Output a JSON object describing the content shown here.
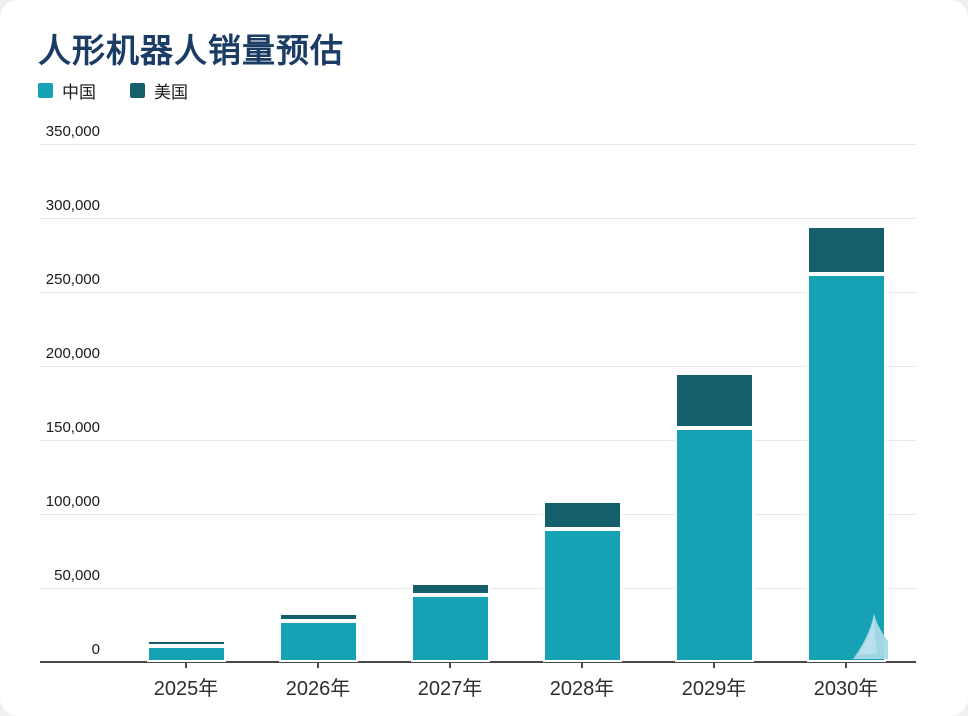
{
  "title": "人形机器人销量预估",
  "legend": {
    "items": [
      {
        "label": "中国",
        "color": "#16a2b4"
      },
      {
        "label": "美国",
        "color": "#155f6c"
      }
    ]
  },
  "chart_data": {
    "type": "bar",
    "stacked": true,
    "title": "人形机器人销量预估",
    "categories": [
      "2025年",
      "2026年",
      "2027年",
      "2028年",
      "2029年",
      "2030年"
    ],
    "series": [
      {
        "name": "中国",
        "color": "#16a2b4",
        "values": [
          11000,
          28000,
          45000,
          90000,
          158000,
          262000
        ]
      },
      {
        "name": "美国",
        "color": "#155f6c",
        "values": [
          4000,
          5000,
          8000,
          19000,
          37000,
          32000
        ]
      }
    ],
    "totals": [
      15000,
      33000,
      53000,
      109000,
      195000,
      294000
    ],
    "xlabel": "",
    "ylabel": "",
    "ylim": [
      0,
      350000
    ],
    "ytick_interval": 50000,
    "ytick_labels": [
      "0",
      "50,000",
      "100,000",
      "150,000",
      "200,000",
      "250,000",
      "300,000",
      "350,000"
    ],
    "grid": true,
    "legend_position": "top-left",
    "segment_outline_color": "#ffffff"
  },
  "colors": {
    "title": "#1b3c64",
    "axis": "#4a4a4a",
    "gridline": "#e8e8e8",
    "watermark": "#a9d9e8",
    "background": "#ffffff"
  },
  "watermark": {
    "name": "page-curl-watermark"
  }
}
